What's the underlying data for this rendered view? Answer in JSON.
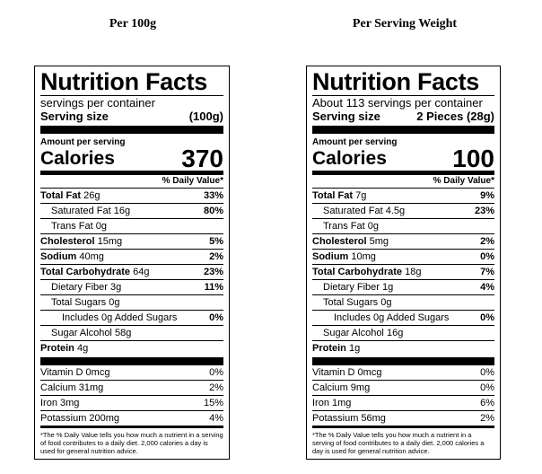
{
  "labels": [
    {
      "heading": "Per 100g",
      "title": "Nutrition Facts",
      "servings": "servings per container",
      "serving_size_label": "Serving size",
      "serving_size": "(100g)",
      "amount_per_serving": "Amount per serving",
      "calories_label": "Calories",
      "calories": "370",
      "daily_value_header": "% Daily Value*",
      "nutrients": [
        {
          "name": "Total Fat",
          "amount": "26g",
          "dv": "33%",
          "bold": true,
          "indent": 0
        },
        {
          "name": "Saturated Fat",
          "amount": "16g",
          "dv": "80%",
          "bold": false,
          "indent": 1
        },
        {
          "name": "Trans Fat",
          "amount": "0g",
          "bold": false,
          "indent": 1
        },
        {
          "name": "Cholesterol",
          "amount": "15mg",
          "dv": "5%",
          "bold": true,
          "indent": 0
        },
        {
          "name": "Sodium",
          "amount": "40mg",
          "dv": "2%",
          "bold": true,
          "indent": 0
        },
        {
          "name": "Total Carbohydrate",
          "amount": "64g",
          "dv": "23%",
          "bold": true,
          "indent": 0
        },
        {
          "name": "Dietary Fiber",
          "amount": "3g",
          "dv": "11%",
          "bold": false,
          "indent": 1
        },
        {
          "name": "Total Sugars",
          "amount": "0g",
          "bold": false,
          "indent": 1
        },
        {
          "name": "Includes 0g Added Sugars",
          "dv": "0%",
          "bold": false,
          "indent": 2
        },
        {
          "name": "Sugar Alcohol",
          "amount": "58g",
          "bold": false,
          "indent": 1
        },
        {
          "name": "Protein",
          "amount": "4g",
          "bold": true,
          "indent": 0
        }
      ],
      "vitamins": [
        {
          "name": "Vitamin D 0mcg",
          "dv": "0%"
        },
        {
          "name": "Calcium 31mg",
          "dv": "2%"
        },
        {
          "name": "Iron 3mg",
          "dv": "15%"
        },
        {
          "name": "Potassium 200mg",
          "dv": "4%"
        }
      ],
      "footnote": "*The % Daily Value tells you how much a nutrient in a serving of food contributes to a daily diet. 2,000 calories a day is used for general nutrition advice."
    },
    {
      "heading": "Per Serving Weight",
      "title": "Nutrition Facts",
      "servings": "About 113 servings per container",
      "serving_size_label": "Serving size",
      "serving_size": "2 Pieces (28g)",
      "amount_per_serving": "Amount per serving",
      "calories_label": "Calories",
      "calories": "100",
      "daily_value_header": "% Daily Value*",
      "nutrients": [
        {
          "name": "Total Fat",
          "amount": "7g",
          "dv": "9%",
          "bold": true,
          "indent": 0
        },
        {
          "name": "Saturated Fat",
          "amount": "4.5g",
          "dv": "23%",
          "bold": false,
          "indent": 1
        },
        {
          "name": "Trans Fat",
          "amount": "0g",
          "bold": false,
          "indent": 1
        },
        {
          "name": "Cholesterol",
          "amount": "5mg",
          "dv": "2%",
          "bold": true,
          "indent": 0
        },
        {
          "name": "Sodium",
          "amount": "10mg",
          "dv": "0%",
          "bold": true,
          "indent": 0
        },
        {
          "name": "Total Carbohydrate",
          "amount": "18g",
          "dv": "7%",
          "bold": true,
          "indent": 0
        },
        {
          "name": "Dietary Fiber",
          "amount": "1g",
          "dv": "4%",
          "bold": false,
          "indent": 1
        },
        {
          "name": "Total Sugars",
          "amount": "0g",
          "bold": false,
          "indent": 1
        },
        {
          "name": "Includes 0g Added Sugars",
          "dv": "0%",
          "bold": false,
          "indent": 2
        },
        {
          "name": "Sugar Alcohol",
          "amount": "16g",
          "bold": false,
          "indent": 1
        },
        {
          "name": "Protein",
          "amount": "1g",
          "bold": true,
          "indent": 0
        }
      ],
      "vitamins": [
        {
          "name": "Vitamin D 0mcg",
          "dv": "0%"
        },
        {
          "name": "Calcium 9mg",
          "dv": "0%"
        },
        {
          "name": "Iron 1mg",
          "dv": "6%"
        },
        {
          "name": "Potassium 56mg",
          "dv": "2%"
        }
      ],
      "footnote": "*The % Daily Value tells you how much a nutrient in a serving of food contributes to a daily diet. 2,000 calories a day is used for general nutrition advice."
    }
  ]
}
